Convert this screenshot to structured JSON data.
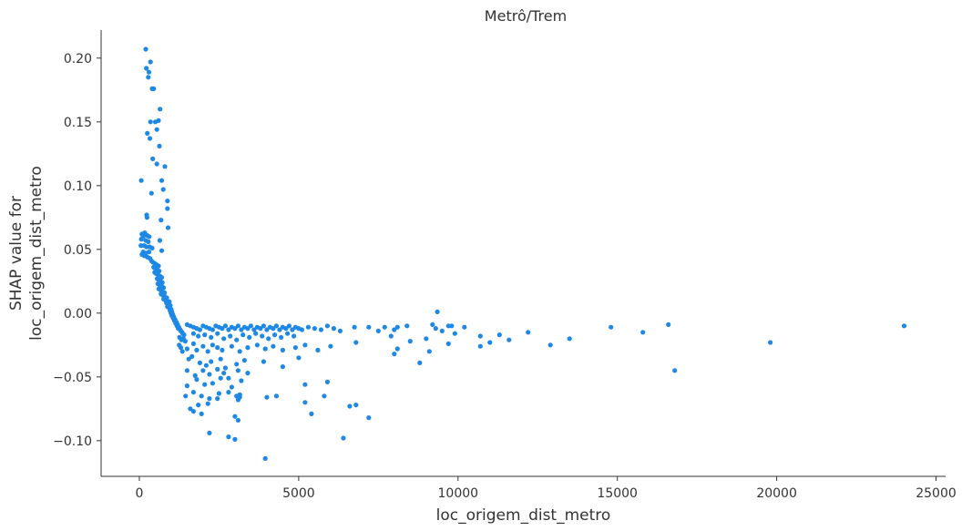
{
  "chart_data": {
    "type": "scatter",
    "title": "Metrô/Trem",
    "xlabel": "loc_origem_dist_metro",
    "ylabel_lines": [
      "SHAP value for",
      "loc_origem_dist_metro"
    ],
    "xlim": [
      -1200,
      25300
    ],
    "ylim": [
      -0.128,
      0.222
    ],
    "xticks": [
      0,
      5000,
      10000,
      15000,
      20000,
      25000
    ],
    "xtick_labels": [
      "0",
      "5000",
      "10000",
      "15000",
      "20000",
      "25000"
    ],
    "yticks": [
      -0.1,
      -0.05,
      0.0,
      0.05,
      0.1,
      0.15,
      0.2
    ],
    "ytick_labels": [
      "−0.10",
      "−0.05",
      "0.00",
      "0.05",
      "0.10",
      "0.15",
      "0.20"
    ],
    "grid": false,
    "point_color": "#1e88e5",
    "axis_color": "#333333",
    "series": [
      {
        "points": [
          [
            200,
            0.207
          ],
          [
            350,
            0.197
          ],
          [
            220,
            0.192
          ],
          [
            300,
            0.189
          ],
          [
            280,
            0.185
          ],
          [
            400,
            0.176
          ],
          [
            450,
            0.176
          ],
          [
            650,
            0.16
          ],
          [
            600,
            0.151
          ],
          [
            350,
            0.15
          ],
          [
            500,
            0.15
          ],
          [
            550,
            0.144
          ],
          [
            250,
            0.141
          ],
          [
            330,
            0.137
          ],
          [
            630,
            0.131
          ],
          [
            420,
            0.121
          ],
          [
            550,
            0.117
          ],
          [
            800,
            0.115
          ],
          [
            60,
            0.104
          ],
          [
            700,
            0.104
          ],
          [
            750,
            0.097
          ],
          [
            380,
            0.094
          ],
          [
            880,
            0.088
          ],
          [
            880,
            0.082
          ],
          [
            230,
            0.077
          ],
          [
            240,
            0.075
          ],
          [
            680,
            0.073
          ],
          [
            900,
            0.067
          ],
          [
            80,
            0.062
          ],
          [
            170,
            0.063
          ],
          [
            240,
            0.061
          ],
          [
            310,
            0.06
          ],
          [
            60,
            0.058
          ],
          [
            120,
            0.06
          ],
          [
            200,
            0.057
          ],
          [
            280,
            0.056
          ],
          [
            640,
            0.057
          ],
          [
            50,
            0.053
          ],
          [
            150,
            0.053
          ],
          [
            220,
            0.052
          ],
          [
            320,
            0.052
          ],
          [
            400,
            0.051
          ],
          [
            120,
            0.048
          ],
          [
            80,
            0.046
          ],
          [
            200,
            0.047
          ],
          [
            300,
            0.048
          ],
          [
            700,
            0.049
          ],
          [
            150,
            0.045
          ],
          [
            250,
            0.044
          ],
          [
            330,
            0.043
          ],
          [
            380,
            0.041
          ],
          [
            420,
            0.04
          ],
          [
            480,
            0.039
          ],
          [
            540,
            0.038
          ],
          [
            600,
            0.037
          ],
          [
            450,
            0.036
          ],
          [
            500,
            0.035
          ],
          [
            560,
            0.034
          ],
          [
            620,
            0.033
          ],
          [
            480,
            0.032
          ],
          [
            530,
            0.031
          ],
          [
            590,
            0.03
          ],
          [
            650,
            0.029
          ],
          [
            700,
            0.028
          ],
          [
            560,
            0.027
          ],
          [
            610,
            0.026
          ],
          [
            660,
            0.025
          ],
          [
            720,
            0.024
          ],
          [
            580,
            0.023
          ],
          [
            640,
            0.022
          ],
          [
            700,
            0.021
          ],
          [
            760,
            0.02
          ],
          [
            610,
            0.019
          ],
          [
            670,
            0.018
          ],
          [
            730,
            0.017
          ],
          [
            790,
            0.016
          ],
          [
            680,
            0.015
          ],
          [
            740,
            0.014
          ],
          [
            800,
            0.013
          ],
          [
            860,
            0.012
          ],
          [
            760,
            0.011
          ],
          [
            820,
            0.01
          ],
          [
            880,
            0.009
          ],
          [
            940,
            0.009
          ],
          [
            850,
            0.008
          ],
          [
            910,
            0.007
          ],
          [
            970,
            0.006
          ],
          [
            880,
            0.005
          ],
          [
            940,
            0.004
          ],
          [
            1000,
            0.003
          ],
          [
            960,
            0.002
          ],
          [
            1020,
            0.001
          ],
          [
            990,
            0.0
          ],
          [
            1050,
            -0.001
          ],
          [
            1020,
            -0.002
          ],
          [
            1080,
            -0.003
          ],
          [
            1060,
            -0.004
          ],
          [
            1120,
            -0.005
          ],
          [
            1100,
            -0.006
          ],
          [
            1160,
            -0.007
          ],
          [
            1140,
            -0.008
          ],
          [
            1200,
            -0.009
          ],
          [
            1180,
            -0.01
          ],
          [
            1240,
            -0.011
          ],
          [
            1220,
            -0.012
          ],
          [
            1280,
            -0.013
          ],
          [
            1300,
            -0.014
          ],
          [
            1340,
            -0.015
          ],
          [
            1360,
            -0.016
          ],
          [
            1400,
            -0.017
          ],
          [
            1260,
            -0.019
          ],
          [
            1320,
            -0.021
          ],
          [
            1380,
            -0.02
          ],
          [
            1440,
            -0.022
          ],
          [
            1250,
            -0.025
          ],
          [
            1500,
            -0.009
          ],
          [
            1600,
            -0.01
          ],
          [
            1700,
            -0.011
          ],
          [
            1800,
            -0.012
          ],
          [
            1900,
            -0.013
          ],
          [
            2000,
            -0.01
          ],
          [
            2100,
            -0.011
          ],
          [
            2200,
            -0.012
          ],
          [
            2300,
            -0.013
          ],
          [
            2400,
            -0.01
          ],
          [
            2500,
            -0.011
          ],
          [
            2600,
            -0.012
          ],
          [
            2700,
            -0.01
          ],
          [
            2800,
            -0.013
          ],
          [
            2900,
            -0.011
          ],
          [
            3000,
            -0.012
          ],
          [
            3100,
            -0.01
          ],
          [
            3200,
            -0.013
          ],
          [
            3300,
            -0.011
          ],
          [
            3400,
            -0.012
          ],
          [
            3500,
            -0.01
          ],
          [
            3600,
            -0.013
          ],
          [
            3700,
            -0.011
          ],
          [
            3800,
            -0.012
          ],
          [
            3900,
            -0.01
          ],
          [
            4000,
            -0.013
          ],
          [
            4100,
            -0.011
          ],
          [
            4200,
            -0.012
          ],
          [
            4300,
            -0.01
          ],
          [
            4400,
            -0.013
          ],
          [
            4500,
            -0.011
          ],
          [
            4600,
            -0.012
          ],
          [
            4700,
            -0.01
          ],
          [
            4800,
            -0.013
          ],
          [
            4900,
            -0.011
          ],
          [
            5000,
            -0.012
          ],
          [
            5100,
            -0.013
          ],
          [
            5300,
            -0.011
          ],
          [
            5500,
            -0.012
          ],
          [
            5700,
            -0.013
          ],
          [
            5900,
            -0.01
          ],
          [
            6100,
            -0.012
          ],
          [
            6300,
            -0.014
          ],
          [
            1700,
            -0.016
          ],
          [
            1850,
            -0.018
          ],
          [
            2050,
            -0.017
          ],
          [
            2250,
            -0.019
          ],
          [
            2450,
            -0.016
          ],
          [
            2650,
            -0.02
          ],
          [
            2850,
            -0.018
          ],
          [
            3050,
            -0.021
          ],
          [
            3250,
            -0.017
          ],
          [
            3450,
            -0.019
          ],
          [
            3650,
            -0.016
          ],
          [
            3850,
            -0.018
          ],
          [
            4050,
            -0.02
          ],
          [
            4250,
            -0.017
          ],
          [
            4450,
            -0.019
          ],
          [
            4650,
            -0.016
          ],
          [
            4850,
            -0.018
          ],
          [
            1300,
            -0.027
          ],
          [
            1350,
            -0.03
          ],
          [
            1500,
            -0.028
          ],
          [
            1700,
            -0.024
          ],
          [
            1800,
            -0.029
          ],
          [
            2000,
            -0.026
          ],
          [
            2150,
            -0.03
          ],
          [
            2300,
            -0.025
          ],
          [
            2450,
            -0.027
          ],
          [
            2600,
            -0.029
          ],
          [
            2900,
            -0.026
          ],
          [
            3150,
            -0.03
          ],
          [
            3400,
            -0.027
          ],
          [
            3700,
            -0.025
          ],
          [
            3950,
            -0.028
          ],
          [
            4200,
            -0.026
          ],
          [
            4500,
            -0.029
          ],
          [
            4900,
            -0.027
          ],
          [
            5200,
            -0.025
          ],
          [
            5600,
            -0.029
          ],
          [
            6000,
            -0.026
          ],
          [
            6800,
            -0.023
          ],
          [
            1550,
            -0.036
          ],
          [
            1650,
            -0.034
          ],
          [
            1900,
            -0.039
          ],
          [
            2100,
            -0.041
          ],
          [
            2250,
            -0.038
          ],
          [
            2550,
            -0.036
          ],
          [
            2700,
            -0.043
          ],
          [
            3050,
            -0.04
          ],
          [
            3300,
            -0.037
          ],
          [
            3900,
            -0.038
          ],
          [
            5000,
            -0.035
          ],
          [
            1500,
            -0.045
          ],
          [
            1750,
            -0.049
          ],
          [
            2000,
            -0.045
          ],
          [
            2200,
            -0.048
          ],
          [
            2450,
            -0.044
          ],
          [
            2650,
            -0.047
          ],
          [
            2800,
            -0.051
          ],
          [
            3100,
            -0.045
          ],
          [
            3400,
            -0.047
          ],
          [
            4500,
            -0.042
          ],
          [
            1500,
            -0.057
          ],
          [
            1800,
            -0.052
          ],
          [
            2050,
            -0.056
          ],
          [
            2300,
            -0.055
          ],
          [
            2550,
            -0.051
          ],
          [
            2900,
            -0.058
          ],
          [
            3200,
            -0.053
          ],
          [
            1450,
            -0.065
          ],
          [
            1700,
            -0.062
          ],
          [
            1950,
            -0.065
          ],
          [
            2200,
            -0.067
          ],
          [
            2500,
            -0.063
          ],
          [
            2800,
            -0.062
          ],
          [
            3050,
            -0.065
          ],
          [
            3150,
            -0.064
          ],
          [
            5200,
            -0.056
          ],
          [
            5900,
            -0.054
          ],
          [
            1600,
            -0.075
          ],
          [
            1850,
            -0.072
          ],
          [
            2150,
            -0.071
          ],
          [
            2450,
            -0.067
          ],
          [
            3150,
            -0.066
          ],
          [
            3100,
            -0.068
          ],
          [
            4000,
            -0.066
          ],
          [
            4300,
            -0.065
          ],
          [
            5800,
            -0.065
          ],
          [
            5200,
            -0.07
          ],
          [
            1700,
            -0.077
          ],
          [
            1950,
            -0.079
          ],
          [
            3000,
            -0.081
          ],
          [
            3100,
            -0.084
          ],
          [
            5400,
            -0.079
          ],
          [
            6600,
            -0.073
          ],
          [
            6800,
            -0.072
          ],
          [
            7200,
            -0.082
          ],
          [
            2200,
            -0.094
          ],
          [
            2800,
            -0.097
          ],
          [
            3000,
            -0.099
          ],
          [
            6400,
            -0.098
          ],
          [
            3950,
            -0.114
          ],
          [
            6750,
            -0.011
          ],
          [
            7200,
            -0.011
          ],
          [
            7700,
            -0.011
          ],
          [
            8100,
            -0.011
          ],
          [
            8400,
            -0.01
          ],
          [
            9200,
            -0.009
          ],
          [
            9700,
            -0.01
          ],
          [
            9300,
            -0.012
          ],
          [
            10200,
            -0.011
          ],
          [
            7500,
            -0.014
          ],
          [
            8000,
            -0.013
          ],
          [
            9500,
            -0.014
          ],
          [
            9900,
            -0.016
          ],
          [
            11300,
            -0.017
          ],
          [
            12200,
            -0.015
          ],
          [
            7900,
            -0.018
          ],
          [
            8500,
            -0.022
          ],
          [
            9000,
            -0.02
          ],
          [
            10700,
            -0.018
          ],
          [
            11000,
            -0.023
          ],
          [
            11600,
            -0.021
          ],
          [
            9700,
            -0.024
          ],
          [
            10700,
            -0.026
          ],
          [
            8100,
            -0.028
          ],
          [
            9100,
            -0.03
          ],
          [
            8000,
            -0.032
          ],
          [
            8800,
            -0.039
          ],
          [
            9350,
            0.001
          ],
          [
            9800,
            -0.01
          ],
          [
            12900,
            -0.025
          ],
          [
            13500,
            -0.02
          ],
          [
            14800,
            -0.011
          ],
          [
            15800,
            -0.015
          ],
          [
            16600,
            -0.009
          ],
          [
            16800,
            -0.045
          ],
          [
            19800,
            -0.023
          ],
          [
            24000,
            -0.01
          ]
        ]
      }
    ]
  }
}
